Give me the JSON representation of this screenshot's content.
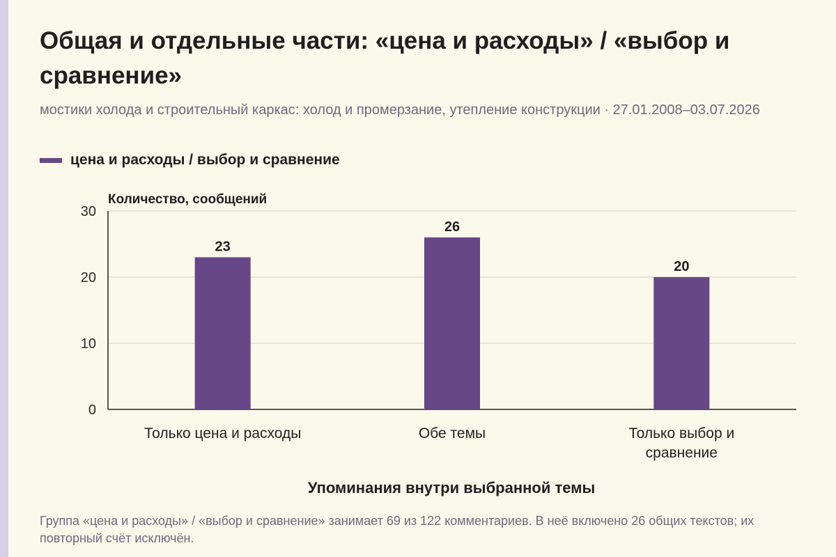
{
  "title": "Общая и отдельные части: «цена и расходы» / «выбор и сравнение»",
  "subtitle": "мостики холода и строительный каркас: холод и промерзание, утепление конструкции · 27.01.2008–03.07.2026",
  "footnote": "Группа «цена и расходы» / «выбор и сравнение» занимает 69 из 122 комментариев. В неё включено 26 общих текстов; их повторный счёт исключён.",
  "colors": {
    "bar": "#674788",
    "accent": "#d9cfe8",
    "background": "#fbf8ec"
  },
  "chart_data": {
    "type": "bar",
    "categories": [
      "Только цена и расходы",
      "Обе темы",
      "Только выбор и сравнение"
    ],
    "series": [
      {
        "name": "цена и расходы / выбор и сравнение",
        "values": [
          23,
          26,
          20
        ]
      }
    ],
    "ylabel": "Количество, сообщений",
    "xlabel": "Упоминания внутри выбранной темы",
    "ylim": [
      0,
      30
    ],
    "yticks": [
      0,
      10,
      20,
      30
    ],
    "grid": true,
    "legend": "top-left",
    "data_labels": true
  }
}
